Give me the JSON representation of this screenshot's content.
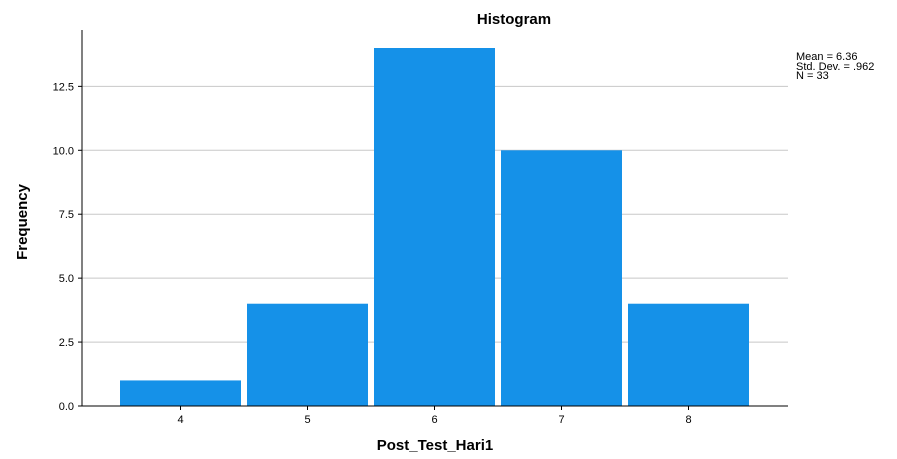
{
  "chart_data": {
    "type": "bar",
    "title": "Histogram",
    "xlabel": "Post_Test_Hari1",
    "ylabel": "Frequency",
    "categories": [
      "4",
      "5",
      "6",
      "7",
      "8"
    ],
    "values": [
      1,
      4,
      14,
      10,
      4
    ],
    "ylim": [
      0,
      14
    ],
    "yticks": [
      "0.0",
      "2.5",
      "5.0",
      "7.5",
      "10.0",
      "12.5"
    ],
    "ytick_values": [
      0,
      2.5,
      5,
      7.5,
      10,
      12.5
    ],
    "grid": true,
    "bar_color": "#1591e8",
    "stats": {
      "mean": "Mean = 6.36",
      "std": "Std. Dev. = .962",
      "n": "N = 33"
    }
  }
}
